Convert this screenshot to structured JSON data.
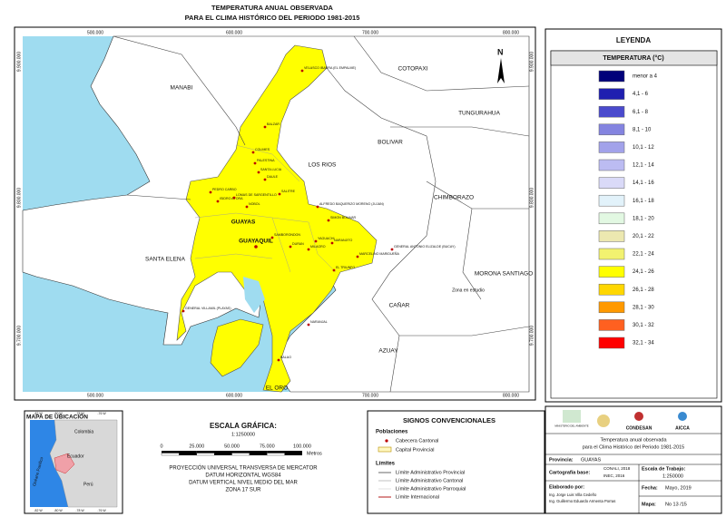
{
  "title": [
    "TEMPERATURA ANUAL OBSERVADA",
    "PARA EL CLIMA HISTÓRICO DEL PERIODO 1981-2015"
  ],
  "map": {
    "x_coords": [
      "500.000",
      "600.000",
      "700.000",
      "800.000"
    ],
    "y_coords": [
      "9.900.000",
      "9.800.000",
      "9.700.000"
    ],
    "north": "N",
    "provinces": [
      "MANABI",
      "COTOPAXI",
      "TUNGURAHUA",
      "BOLIVAR",
      "LOS RIOS",
      "CHIMBORAZO",
      "SANTA ELENA",
      "GUAYAS",
      "MORONA SANTIAGO",
      "Zona en estudio",
      "CAÑAR",
      "AZUAY",
      "EL ORO"
    ],
    "capital": "GUAYAQUIL",
    "towns": [
      "VELASCO IBARRA (EL EMPALME)",
      "BALZAR",
      "COLIMES",
      "PALESTINA",
      "SANTA LUCIA",
      "PEDRO CARBO",
      "ISIDRO AYORA",
      "LOMAS DE SARGENTILLO",
      "NOBOL",
      "DAULE",
      "SALITRE",
      "ALFREDO BAQUERIZO MORENO (JUJAN)",
      "SIMON BOLIVAR",
      "SAMBORONDON",
      "DURAN",
      "YAGUACHI",
      "MILAGRO",
      "NARANJITO",
      "GENERAL ANTONIO ELIZALDE (BUCAY)",
      "MARCELINO MARIDUEÑA",
      "EL TRIUNFO",
      "GENERAL VILLAMIL (PLAYAS)",
      "NARANJAL",
      "BALAO"
    ]
  },
  "legend": {
    "title": "LEYENDA",
    "subtitle": "TEMPERATURA (°C)",
    "classes": [
      {
        "label": "menor a 4",
        "color": "#00007a"
      },
      {
        "label": "4,1 - 6",
        "color": "#1f1fb0"
      },
      {
        "label": "6,1 - 8",
        "color": "#4a4acd"
      },
      {
        "label": "8,1 - 10",
        "color": "#8484e0"
      },
      {
        "label": "10,1 - 12",
        "color": "#a2a2ea"
      },
      {
        "label": "12,1 - 14",
        "color": "#bcbcf2"
      },
      {
        "label": "14,1 - 16",
        "color": "#dadaf8"
      },
      {
        "label": "16,1 - 18",
        "color": "#e2f2fa"
      },
      {
        "label": "18,1 - 20",
        "color": "#e2f8e2"
      },
      {
        "label": "20,1 - 22",
        "color": "#ece8b0"
      },
      {
        "label": "22,1 - 24",
        "color": "#f2f270"
      },
      {
        "label": "24,1 - 26",
        "color": "#ffff00"
      },
      {
        "label": "26,1 - 28",
        "color": "#ffd700"
      },
      {
        "label": "28,1 - 30",
        "color": "#ff9900"
      },
      {
        "label": "30,1 - 32",
        "color": "#ff6020"
      },
      {
        "label": "32,1 - 34",
        "color": "#ff0000"
      }
    ]
  },
  "location_map": {
    "title": "MAPA DE UBICACIÓN",
    "countries": [
      "Colombia",
      "Ecuador",
      "Perú"
    ],
    "ocean": "Océano Pacífico",
    "lon": [
      "-82 W",
      "-80 W",
      "-78 W",
      "-76 W"
    ]
  },
  "scale": {
    "title": "ESCALA GRÁFICA:",
    "ratio": "1:1250000",
    "ticks": [
      "0",
      "25.000",
      "50.000",
      "75.000",
      "100.000"
    ],
    "unit": "Metros",
    "projection": [
      "PROYECCIÓN UNIVERSAL TRANSVERSA DE MERCATOR",
      "DATUM HORIZONTAL WGS84",
      "DATUM VERTICAL NIVEL MEDIO DEL MAR",
      "ZONA 17 SUR"
    ]
  },
  "symbols": {
    "title": "SIGNOS CONVENCIONALES",
    "pop_title": "Poblaciones",
    "pop": [
      "Cabecera Cantonal",
      "Capital Provincial"
    ],
    "lim_title": "Límites",
    "lims": [
      "Límite Administrativo Provincial",
      "Límite Administrativo Cantonal",
      "Límite Administrativo Parroquial",
      "Límite Internacional"
    ]
  },
  "info": {
    "logos": [
      "MINISTERIO DEL AMBIENTE",
      "CONDESAN",
      "AICCA"
    ],
    "description": [
      "Temperatura anual observada",
      "para el Clima Histórico del Periodo 1981-2015"
    ],
    "province_label": "Provincia:",
    "province": "GUAYAS",
    "base_label": "Cartografía base:",
    "base": [
      "CONALI, 2018",
      "INEC, 2016"
    ],
    "scale_label": "Escala de Trabajo:",
    "scale": "1:250000",
    "author_label": "Elaborado por:",
    "authors": [
      "Ing. Jorge Luis Villa Cedeño",
      "Ing. Guillermo Eduardo Armenta Porras"
    ],
    "date_label": "Fecha:",
    "date": "Mayo, 2019",
    "map_label": "Mapa:",
    "map": "No 13 /15"
  }
}
